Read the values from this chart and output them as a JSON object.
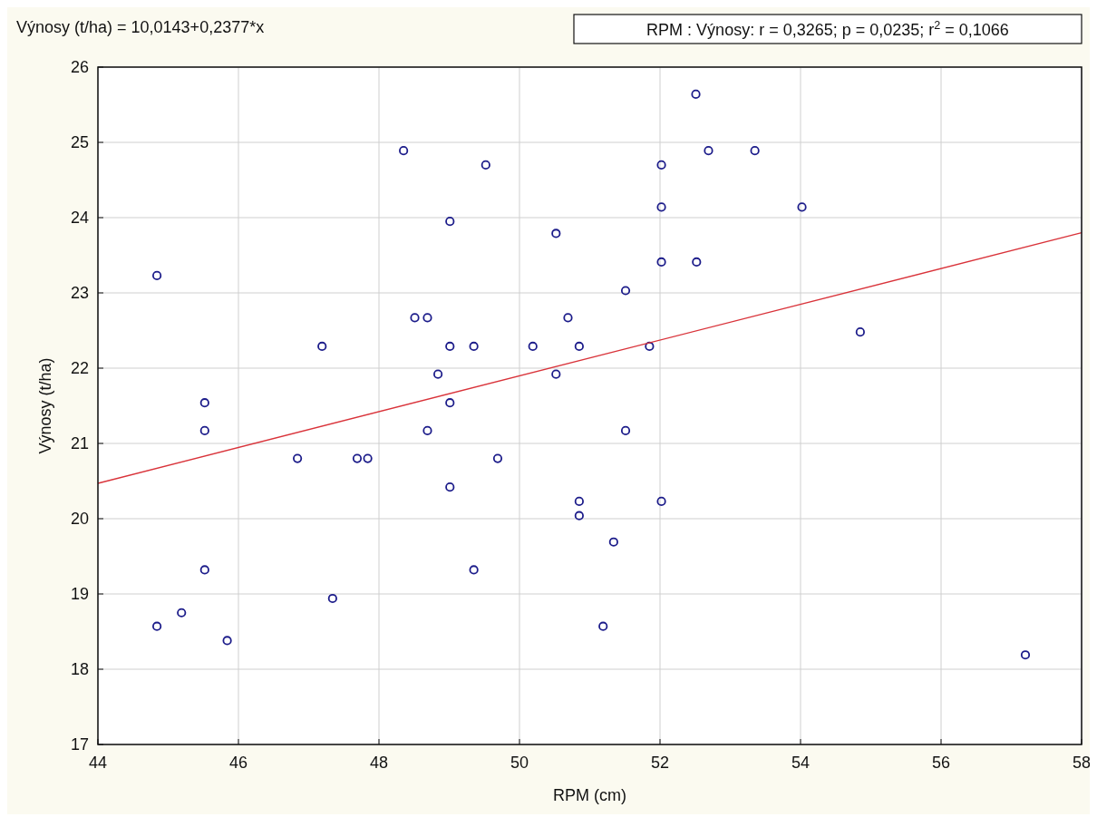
{
  "chart_data": {
    "type": "scatter",
    "title": "Výnosy (t/ha) = 10,0143+0,2377*x",
    "annotations": [
      "RPM : Výnosy: r = 0,3265; p = 0,0235; r$^{2}$ = 0,1066"
    ],
    "xlabel": "RPM (cm)",
    "ylabel": "Výnosy (t/ha)",
    "xlim": [
      44,
      58
    ],
    "xticks": [
      44,
      46,
      48,
      50,
      52,
      54,
      56,
      58
    ],
    "ylim": [
      17,
      26
    ],
    "yticks": [
      17,
      18,
      19,
      20,
      21,
      22,
      23,
      24,
      25,
      26
    ],
    "grid": true,
    "marker": "circle",
    "series": [
      {
        "color": "#1c1c8a",
        "x": [
          48.35,
          49.52,
          49.01,
          50.52,
          44.84,
          48.51,
          48.69,
          50.69,
          47.19,
          49.01,
          49.35,
          50.19,
          50.85,
          48.84,
          50.52,
          45.52,
          49.01,
          52.51,
          52.69,
          53.35,
          52.02,
          52.02,
          54.02,
          52.02,
          52.52,
          51.51,
          51.85,
          54.85,
          45.52,
          46.84,
          47.69,
          47.84,
          48.69,
          49.69,
          49.01,
          50.85,
          50.85,
          45.52,
          49.35,
          47.34,
          45.19,
          44.84,
          45.84,
          51.51,
          52.02,
          51.34,
          51.19,
          57.2
        ],
        "values": [
          24.89,
          24.7,
          23.95,
          23.79,
          23.23,
          22.67,
          22.67,
          22.67,
          22.29,
          22.29,
          22.29,
          22.29,
          22.29,
          21.92,
          21.92,
          21.54,
          21.54,
          25.64,
          24.89,
          24.89,
          24.7,
          24.14,
          24.14,
          23.41,
          23.41,
          23.03,
          22.29,
          22.48,
          21.17,
          20.8,
          20.8,
          20.8,
          21.17,
          20.8,
          20.42,
          20.23,
          20.04,
          19.32,
          19.32,
          18.94,
          18.75,
          18.57,
          18.38,
          21.17,
          20.23,
          19.69,
          18.57,
          18.19
        ]
      },
      {
        "type": "line",
        "color": "#d9333a",
        "marker": "none",
        "x": [
          44,
          58
        ],
        "values": [
          20.47,
          23.8
        ]
      }
    ]
  }
}
